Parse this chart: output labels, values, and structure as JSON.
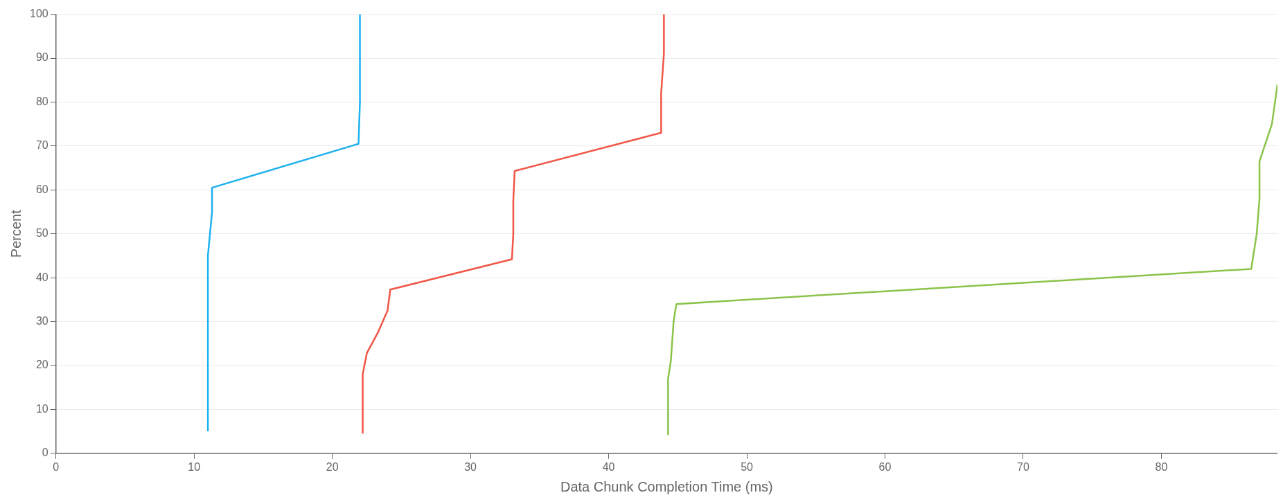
{
  "chart_data": {
    "type": "line",
    "xlabel": "Data Chunk Completion Time (ms)",
    "ylabel": "Percent",
    "xlim": [
      0,
      88.4
    ],
    "xticks": [
      0,
      10,
      20,
      30,
      40,
      50,
      60,
      70,
      80
    ],
    "ylim": [
      0,
      100
    ],
    "yticks": [
      0,
      10,
      20,
      30,
      40,
      50,
      60,
      70,
      80,
      90,
      100
    ],
    "grid": "y",
    "legend": false,
    "marker": "none",
    "line_style": "solid",
    "series": [
      {
        "color": "#1eb1f0",
        "x": [
          11.0,
          11.0,
          11.3,
          11.3,
          21.9,
          22.0,
          22.0
        ],
        "values": [
          5,
          45,
          55,
          60.5,
          70.5,
          80,
          100
        ]
      },
      {
        "color": "#f05545",
        "x": [
          22.2,
          22.2,
          22.5,
          23.3,
          24.0,
          24.2,
          33.0,
          33.1,
          33.1,
          33.2,
          43.8,
          43.8,
          44.0,
          44.0
        ],
        "values": [
          4.5,
          18,
          22.8,
          27.5,
          32.5,
          37.3,
          44.2,
          50,
          57.5,
          64.3,
          73,
          82,
          91,
          100
        ]
      },
      {
        "color": "#8bc34a",
        "x": [
          44.3,
          44.3,
          44.5,
          44.7,
          44.9,
          86.5,
          86.9,
          87.1,
          87.1,
          88.0,
          88.4
        ],
        "values": [
          4.2,
          17,
          21,
          30,
          34,
          42,
          50,
          58,
          66.5,
          75,
          84
        ]
      }
    ]
  }
}
